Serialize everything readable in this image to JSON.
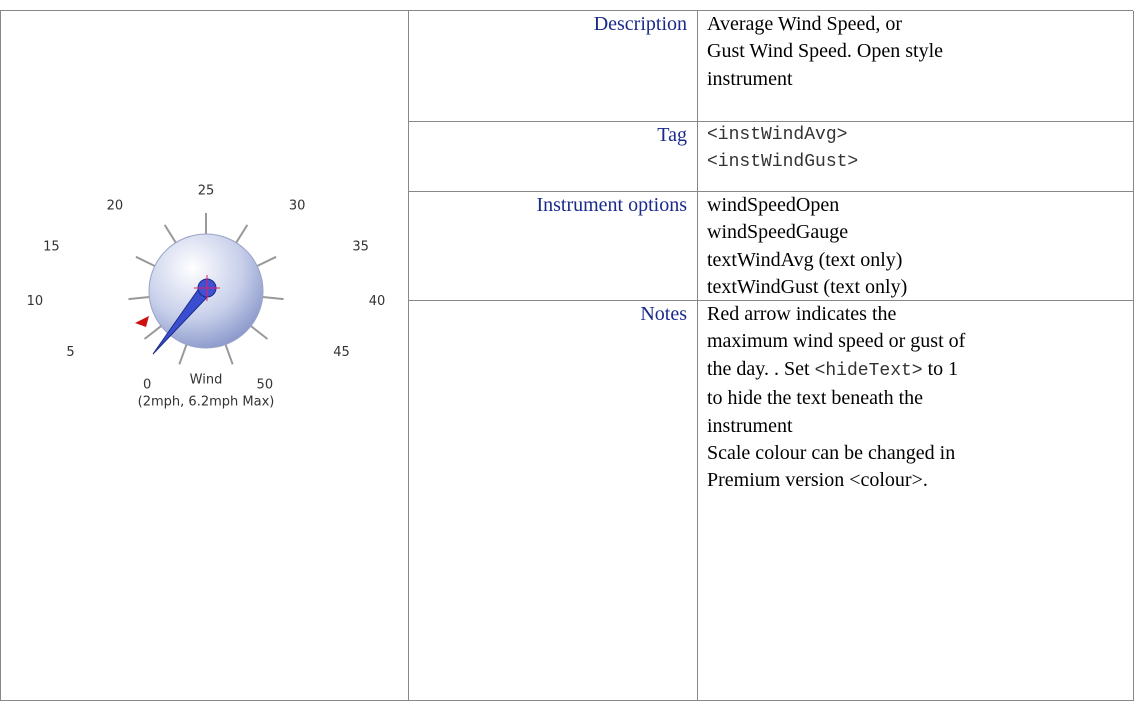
{
  "gauge": {
    "ticks": [
      0,
      5,
      10,
      15,
      20,
      25,
      30,
      35,
      40,
      45,
      50
    ],
    "title": "Wind",
    "reading": "(2mph, 6.2mph Max)"
  },
  "table": {
    "rows": [
      {
        "label": "Description",
        "lines": [
          [
            "Average Wind Speed, or"
          ],
          [
            "Gust Wind Speed. Open style"
          ],
          [
            "instrument"
          ]
        ]
      },
      {
        "label": "Tag",
        "mono": true,
        "lines": [
          [
            "<instWindAvg>"
          ],
          [
            "<instWindGust>"
          ]
        ]
      },
      {
        "label": "Instrument options",
        "lines": [
          [
            "windSpeedOpen"
          ],
          [
            "windSpeedGauge"
          ],
          [
            "textWindAvg (text only)"
          ],
          [
            "textWindGust (text only)"
          ]
        ]
      },
      {
        "label": "Notes",
        "lines": [
          [
            "Red arrow indicates the"
          ],
          [
            "maximum wind speed or gust of"
          ],
          [
            "the day. . Set ",
            {
              "code": "<hideText>"
            },
            " to 1"
          ],
          [
            "to hide the text beneath the"
          ],
          [
            "instrument"
          ],
          [
            "Scale colour can be changed in"
          ],
          [
            "Premium version <colour>."
          ]
        ]
      }
    ]
  }
}
